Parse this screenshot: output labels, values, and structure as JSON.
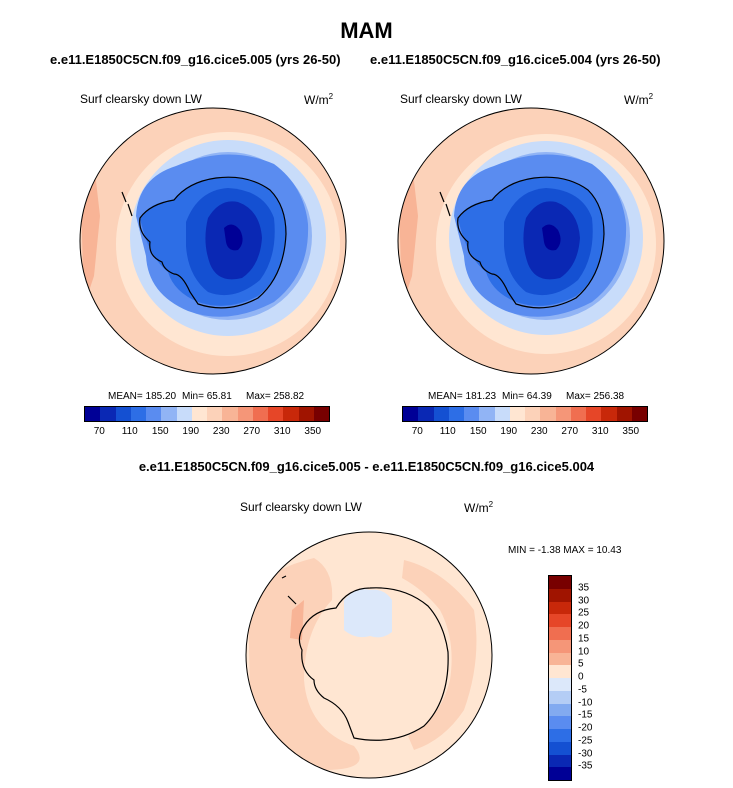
{
  "title": "MAM",
  "subtitle_left": "e.e11.E1850C5CN.f09_g16.cice5.005 (yrs 26-50)",
  "subtitle_right": "e.e11.E1850C5CN.f09_g16.cice5.004 (yrs 26-50)",
  "diff_title": "e.e11.E1850C5CN.f09_g16.cice5.005 - e.e11.E1850C5CN.f09_g16.cice5.004",
  "variable": "Surf clearsky down LW",
  "units_base": "W/m",
  "units_exp": "2",
  "panels": [
    {
      "mean": "MEAN= 185.20",
      "min": "Min=  65.81",
      "max": "Max= 258.82"
    },
    {
      "mean": "MEAN= 181.23",
      "min": "Min=  64.39",
      "max": "Max= 256.38"
    }
  ],
  "diff_stats": "MIN =  -1.38 MAX =  10.43",
  "colorbar_abs": {
    "ticks": [
      "70",
      "110",
      "150",
      "190",
      "230",
      "270",
      "310",
      "350"
    ],
    "colors": [
      "#000096",
      "#0a28b4",
      "#1450d2",
      "#2d6ee6",
      "#5a8cf0",
      "#91b4f5",
      "#c8dcfa",
      "#ffe6d2",
      "#fcd2b9",
      "#f8b496",
      "#f59678",
      "#f06e50",
      "#e64628",
      "#c8280a",
      "#a01400",
      "#780000"
    ]
  },
  "colorbar_diff": {
    "ticks": [
      "35",
      "30",
      "25",
      "20",
      "15",
      "10",
      "5",
      "0",
      "-5",
      "-10",
      "-15",
      "-20",
      "-25",
      "-30",
      "-35"
    ],
    "colors": [
      "#780000",
      "#a01400",
      "#c8280a",
      "#e64628",
      "#f06e50",
      "#f59678",
      "#f8b496",
      "#ffe6d2",
      "#dce8fa",
      "#b4cdf5",
      "#82aaf0",
      "#5a8cf0",
      "#2d6ee6",
      "#1450d2",
      "#0a28b4",
      "#000096"
    ]
  }
}
